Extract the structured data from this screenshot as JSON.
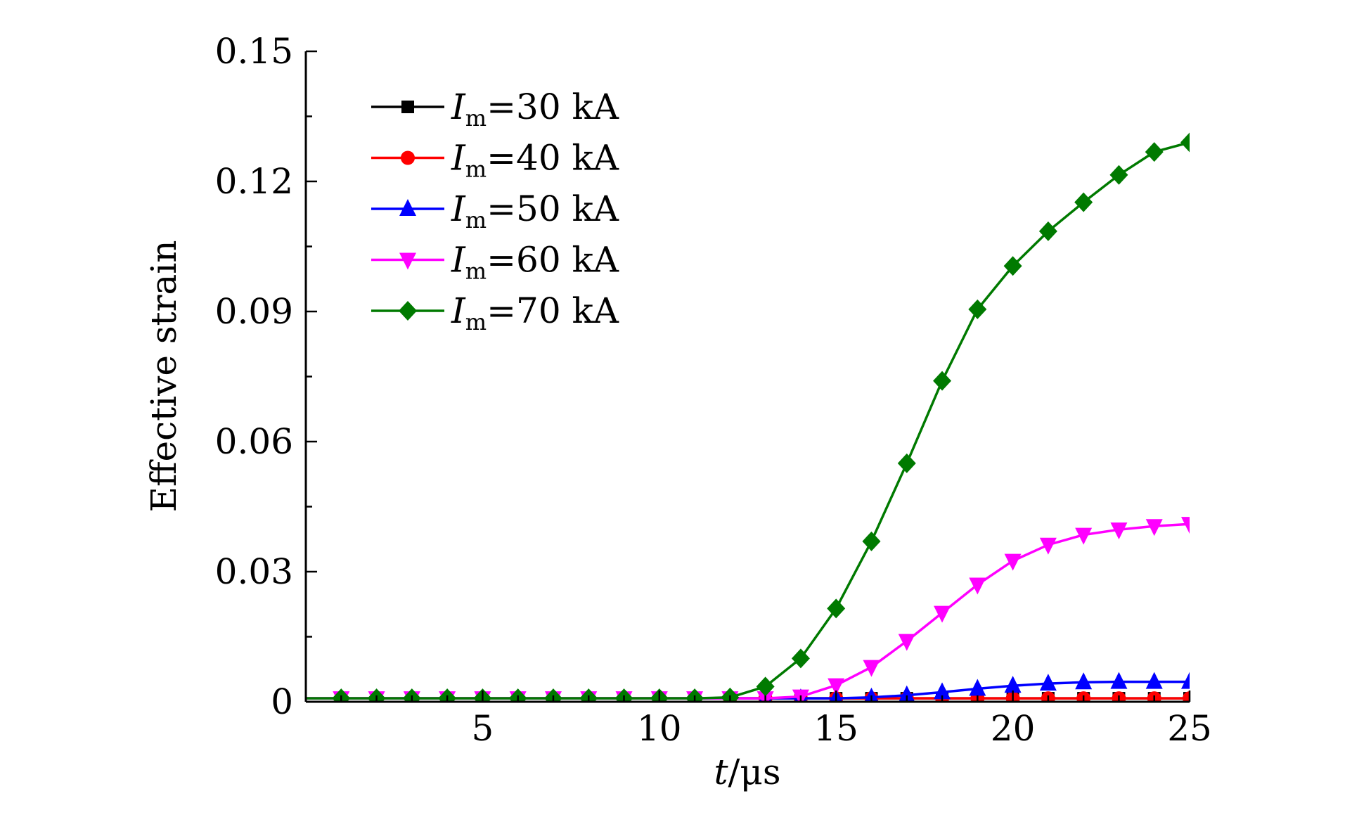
{
  "chart_data": {
    "type": "line",
    "xlabel_var": "t",
    "xlabel_unit": "/μs",
    "ylabel": "Effective strain",
    "xlim": [
      0,
      25
    ],
    "ylim": [
      0,
      0.15
    ],
    "xticks": [
      5,
      10,
      15,
      20,
      25
    ],
    "xtick_labels": [
      "5",
      "10",
      "15",
      "20",
      "25"
    ],
    "yticks": [
      0,
      0.03,
      0.06,
      0.09,
      0.12,
      0.15
    ],
    "ytick_labels": [
      "0",
      "0.03",
      "0.06",
      "0.09",
      "0.12",
      "0.15"
    ],
    "legend_position": "top-left",
    "grid": false,
    "x": [
      1,
      2,
      3,
      4,
      5,
      6,
      7,
      8,
      9,
      10,
      11,
      12,
      13,
      14,
      15,
      16,
      17,
      18,
      19,
      20,
      21,
      22,
      23,
      24,
      25
    ],
    "series": [
      {
        "name": "Im=30 kA",
        "legend_var": "I",
        "legend_sub": "m",
        "legend_rest": "=30 kA",
        "color": "#000000",
        "marker": "square",
        "values": [
          0.0008,
          0.0008,
          0.0008,
          0.0008,
          0.0008,
          0.0008,
          0.0008,
          0.0008,
          0.0008,
          0.0008,
          0.0008,
          0.0008,
          0.0008,
          0.0008,
          0.0008,
          0.0008,
          0.0008,
          0.0008,
          0.0008,
          0.0008,
          0.0008,
          0.0008,
          0.0008,
          0.0008,
          0.0008
        ]
      },
      {
        "name": "Im=40 kA",
        "legend_var": "I",
        "legend_sub": "m",
        "legend_rest": "=40 kA",
        "color": "#ff0000",
        "marker": "circle",
        "values": [
          0.0008,
          0.0008,
          0.0008,
          0.0008,
          0.0008,
          0.0008,
          0.0008,
          0.0008,
          0.0008,
          0.0008,
          0.0008,
          0.0008,
          0.0008,
          0.0008,
          0.0008,
          0.0008,
          0.0008,
          0.0008,
          0.0008,
          0.0008,
          0.0008,
          0.0008,
          0.0008,
          0.0008,
          0.0008
        ]
      },
      {
        "name": "Im=50 kA",
        "legend_var": "I",
        "legend_sub": "m",
        "legend_rest": "=50 kA",
        "color": "#0000ff",
        "marker": "triangle-up",
        "values": [
          0.0008,
          0.0008,
          0.0008,
          0.0008,
          0.0008,
          0.0008,
          0.0008,
          0.0008,
          0.0008,
          0.0008,
          0.0008,
          0.0008,
          0.0008,
          0.0008,
          0.0008,
          0.001,
          0.0015,
          0.0022,
          0.003,
          0.0037,
          0.0042,
          0.0045,
          0.0046,
          0.0046,
          0.0046
        ]
      },
      {
        "name": "Im=60 kA",
        "legend_var": "I",
        "legend_sub": "m",
        "legend_rest": "=60 kA",
        "color": "#ff00ff",
        "marker": "triangle-down",
        "values": [
          0.0008,
          0.0008,
          0.0008,
          0.0008,
          0.0008,
          0.0008,
          0.0008,
          0.0008,
          0.0008,
          0.0008,
          0.0008,
          0.0008,
          0.0008,
          0.0012,
          0.0038,
          0.008,
          0.014,
          0.0205,
          0.027,
          0.0325,
          0.0362,
          0.0385,
          0.0397,
          0.0405,
          0.041
        ]
      },
      {
        "name": "Im=70 kA",
        "legend_var": "I",
        "legend_sub": "m",
        "legend_rest": "=70 kA",
        "color": "#007a00",
        "marker": "diamond",
        "values": [
          0.0008,
          0.0008,
          0.0008,
          0.0008,
          0.0008,
          0.0008,
          0.0008,
          0.0008,
          0.0008,
          0.0008,
          0.0008,
          0.001,
          0.0035,
          0.01,
          0.0215,
          0.037,
          0.055,
          0.074,
          0.0905,
          0.1005,
          0.1085,
          0.1152,
          0.1215,
          0.1268,
          0.129
        ]
      }
    ]
  }
}
